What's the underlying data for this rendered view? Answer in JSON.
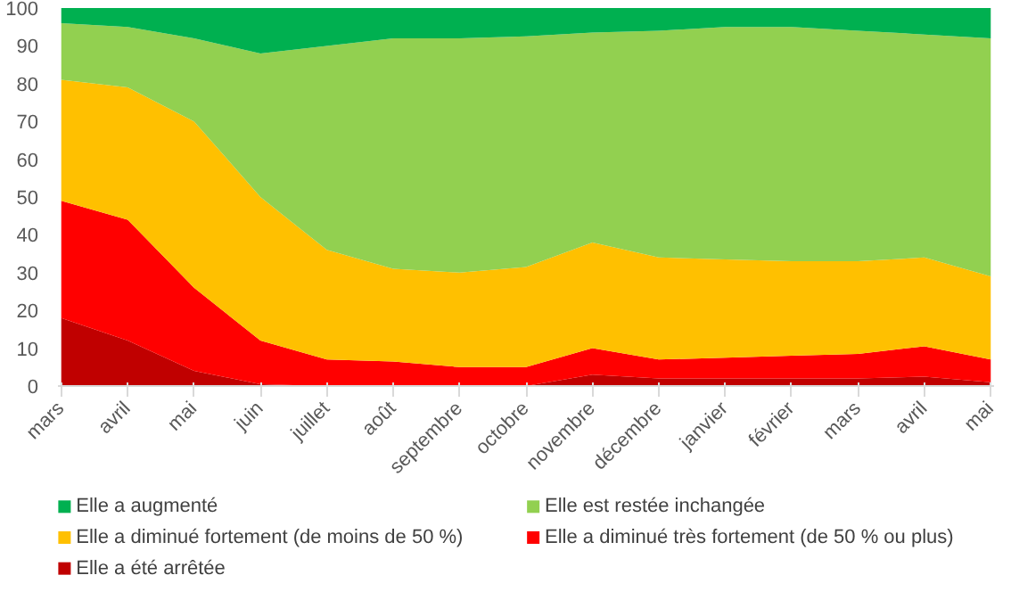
{
  "chart_data": {
    "type": "area",
    "stacked": true,
    "categories": [
      "mars",
      "avril",
      "mai",
      "juin",
      "juillet",
      "août",
      "septembre",
      "octobre",
      "novembre",
      "décembre",
      "janvier",
      "février",
      "mars",
      "avril",
      "mai"
    ],
    "series": [
      {
        "name": "Elle a été arrêtée",
        "color": "#c00000",
        "values": [
          18,
          12,
          4,
          0.5,
          0,
          0,
          0,
          0,
          3,
          2,
          2,
          2,
          2,
          2.5,
          1
        ]
      },
      {
        "name": "Elle a diminué très fortement (de 50 % ou plus)",
        "color": "#ff0000",
        "values": [
          31,
          32,
          22,
          11.5,
          7,
          6.5,
          5,
          5,
          7,
          5,
          5.5,
          6,
          6.5,
          8,
          6
        ]
      },
      {
        "name": "Elle a diminué fortement (de moins de 50 %)",
        "color": "#ffc000",
        "values": [
          32,
          35,
          44,
          38,
          29,
          24.5,
          25,
          26.5,
          28,
          27,
          26,
          25,
          24.5,
          23.5,
          22
        ]
      },
      {
        "name": "Elle est restée inchangée",
        "color": "#92d050",
        "values": [
          15,
          16,
          22,
          38,
          54,
          61,
          62,
          61,
          55.5,
          60,
          61.5,
          62,
          61,
          59,
          63
        ]
      },
      {
        "name": "Elle a augmenté",
        "color": "#00b050",
        "values": [
          4,
          5,
          8,
          12,
          10,
          8,
          8,
          7.5,
          6.5,
          6,
          5,
          5,
          6,
          7,
          8
        ]
      }
    ],
    "ylim": [
      0,
      100
    ],
    "yticks": [
      0,
      10,
      20,
      30,
      40,
      50,
      60,
      70,
      80,
      90,
      100
    ],
    "grid": false,
    "legend": "bottom"
  }
}
